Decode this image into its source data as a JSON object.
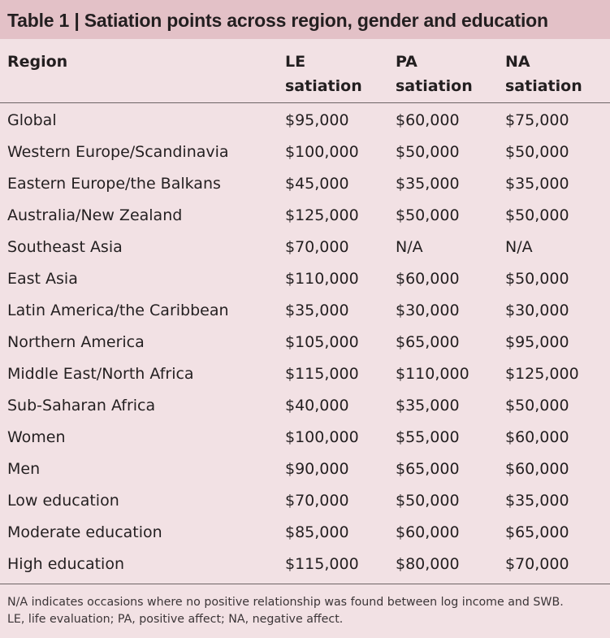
{
  "table": {
    "title": "Table 1 | Satiation points across region, gender and education",
    "headers": [
      {
        "line1": "Region",
        "line2": ""
      },
      {
        "line1": "LE",
        "line2": "satiation"
      },
      {
        "line1": "PA",
        "line2": "satiation"
      },
      {
        "line1": "NA",
        "line2": "satiation"
      }
    ],
    "rows": [
      {
        "region": "Global",
        "le": "$95,000",
        "pa": "$60,000",
        "na": "$75,000"
      },
      {
        "region": "Western Europe/Scandinavia",
        "le": "$100,000",
        "pa": "$50,000",
        "na": "$50,000"
      },
      {
        "region": "Eastern Europe/the Balkans",
        "le": "$45,000",
        "pa": "$35,000",
        "na": "$35,000"
      },
      {
        "region": "Australia/New Zealand",
        "le": "$125,000",
        "pa": "$50,000",
        "na": "$50,000"
      },
      {
        "region": "Southeast Asia",
        "le": "$70,000",
        "pa": "N/A",
        "na": "N/A"
      },
      {
        "region": "East Asia",
        "le": "$110,000",
        "pa": "$60,000",
        "na": "$50,000"
      },
      {
        "region": "Latin America/the Caribbean",
        "le": "$35,000",
        "pa": "$30,000",
        "na": "$30,000"
      },
      {
        "region": "Northern America",
        "le": "$105,000",
        "pa": "$65,000",
        "na": "$95,000"
      },
      {
        "region": "Middle East/North Africa",
        "le": "$115,000",
        "pa": "$110,000",
        "na": "$125,000"
      },
      {
        "region": "Sub-Saharan Africa",
        "le": "$40,000",
        "pa": "$35,000",
        "na": "$50,000"
      },
      {
        "region": "Women",
        "le": "$100,000",
        "pa": "$55,000",
        "na": "$60,000"
      },
      {
        "region": "Men",
        "le": "$90,000",
        "pa": "$65,000",
        "na": "$60,000"
      },
      {
        "region": "Low education",
        "le": "$70,000",
        "pa": "$50,000",
        "na": "$35,000"
      },
      {
        "region": "Moderate education",
        "le": "$85,000",
        "pa": "$60,000",
        "na": "$65,000"
      },
      {
        "region": "High education",
        "le": "$115,000",
        "pa": "$80,000",
        "na": "$70,000"
      }
    ],
    "footnotes": [
      "N/A indicates occasions where no positive relationship was found between log income and SWB.",
      "LE, life evaluation; PA, positive affect; NA, negative affect."
    ]
  }
}
